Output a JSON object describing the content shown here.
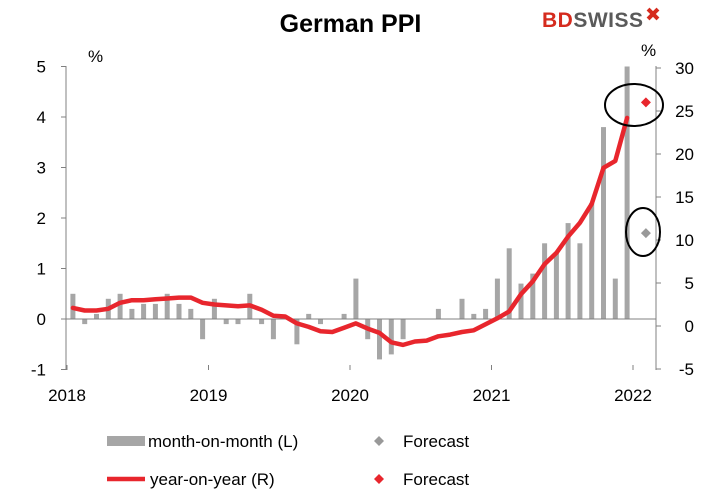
{
  "chart_data": {
    "type": "bar+line",
    "title": "German PPI",
    "left_axis": {
      "unit": "%",
      "range": [
        -1,
        5
      ],
      "ticks": [
        "-1",
        "0",
        "1",
        "2",
        "3",
        "4",
        "5"
      ]
    },
    "right_axis": {
      "unit": "%",
      "range": [
        -5,
        30
      ],
      "ticks": [
        "-5",
        "0",
        "5",
        "10",
        "15",
        "20",
        "25",
        "30"
      ]
    },
    "x_axis": {
      "ticks": [
        "2018",
        "2019",
        "2020",
        "2021",
        "2022"
      ],
      "start": "2018-01",
      "end": "2022-01"
    },
    "series": [
      {
        "name": "month-on-month (L)",
        "type": "bar",
        "axis": "left",
        "color": "#a6a6a6",
        "x": [
          "2018-01",
          "2018-02",
          "2018-03",
          "2018-04",
          "2018-05",
          "2018-06",
          "2018-07",
          "2018-08",
          "2018-09",
          "2018-10",
          "2018-11",
          "2018-12",
          "2019-01",
          "2019-02",
          "2019-03",
          "2019-04",
          "2019-05",
          "2019-06",
          "2019-07",
          "2019-08",
          "2019-09",
          "2019-10",
          "2019-11",
          "2019-12",
          "2020-01",
          "2020-02",
          "2020-03",
          "2020-04",
          "2020-05",
          "2020-06",
          "2020-07",
          "2020-08",
          "2020-09",
          "2020-10",
          "2020-11",
          "2020-12",
          "2021-01",
          "2021-02",
          "2021-03",
          "2021-04",
          "2021-05",
          "2021-06",
          "2021-07",
          "2021-08",
          "2021-09",
          "2021-10",
          "2021-11",
          "2021-12"
        ],
        "values": [
          0.5,
          -0.1,
          0.1,
          0.4,
          0.5,
          0.2,
          0.3,
          0.3,
          0.5,
          0.3,
          0.2,
          -0.4,
          0.4,
          -0.1,
          -0.1,
          0.5,
          -0.1,
          -0.4,
          0.0,
          -0.5,
          0.1,
          -0.1,
          0.0,
          0.1,
          0.8,
          -0.4,
          -0.8,
          -0.7,
          -0.4,
          0.0,
          0.0,
          0.2,
          0.0,
          0.4,
          0.1,
          0.2,
          0.8,
          1.4,
          0.7,
          0.9,
          1.5,
          1.3,
          1.9,
          1.5,
          2.3,
          3.8,
          0.8,
          5.0
        ]
      },
      {
        "name": "year-on-year (R)",
        "type": "line",
        "axis": "right",
        "color": "#e8262d",
        "x": [
          "2018-01",
          "2018-02",
          "2018-03",
          "2018-04",
          "2018-05",
          "2018-06",
          "2018-07",
          "2018-08",
          "2018-09",
          "2018-10",
          "2018-11",
          "2018-12",
          "2019-01",
          "2019-02",
          "2019-03",
          "2019-04",
          "2019-05",
          "2019-06",
          "2019-07",
          "2019-08",
          "2019-09",
          "2019-10",
          "2019-11",
          "2019-12",
          "2020-01",
          "2020-02",
          "2020-03",
          "2020-04",
          "2020-05",
          "2020-06",
          "2020-07",
          "2020-08",
          "2020-09",
          "2020-10",
          "2020-11",
          "2020-12",
          "2021-01",
          "2021-02",
          "2021-03",
          "2021-04",
          "2021-05",
          "2021-06",
          "2021-07",
          "2021-08",
          "2021-09",
          "2021-10",
          "2021-11",
          "2021-12"
        ],
        "values": [
          2.1,
          1.8,
          1.8,
          2.0,
          2.7,
          3.0,
          3.0,
          3.1,
          3.2,
          3.3,
          3.3,
          2.7,
          2.5,
          2.4,
          2.3,
          2.4,
          1.9,
          1.2,
          1.1,
          0.3,
          -0.1,
          -0.6,
          -0.7,
          -0.2,
          0.3,
          -0.3,
          -0.8,
          -1.9,
          -2.2,
          -1.8,
          -1.7,
          -1.2,
          -1.0,
          -0.7,
          -0.5,
          0.2,
          0.9,
          1.7,
          3.7,
          5.2,
          7.2,
          8.5,
          10.4,
          12.0,
          14.2,
          18.4,
          19.2,
          24.2
        ]
      },
      {
        "name": "Forecast",
        "type": "point",
        "axis": "left",
        "color": "#999999",
        "x": [
          "2022-01"
        ],
        "values": [
          1.7
        ]
      },
      {
        "name": "Forecast",
        "type": "point",
        "axis": "right",
        "color": "#e8262d",
        "x": [
          "2022-01"
        ],
        "values": [
          26.0
        ]
      }
    ],
    "annotations": [
      "circle around year-on-year forecast",
      "circle around month-on-month forecast"
    ],
    "legend_position": "bottom",
    "grid": false
  },
  "branding": {
    "logo_red": "BD",
    "logo_grey": "SWISS"
  }
}
